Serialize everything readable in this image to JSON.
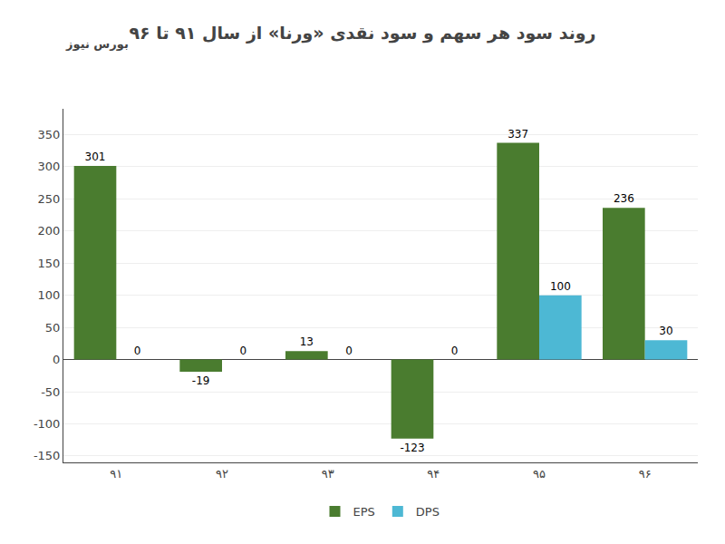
{
  "chart_data": {
    "type": "bar",
    "title": "روند سود هر سهم و سود نقدی «ورنا» از سال ۹۱ تا ۹۶",
    "annotations": [
      "بورس نیوز"
    ],
    "categories": [
      "۹۱",
      "۹۲",
      "۹۳",
      "۹۴",
      "۹۵",
      "۹۶"
    ],
    "series": [
      {
        "name": "EPS",
        "color": "#4a7c2f",
        "values": [
          301,
          -19,
          13,
          -123,
          337,
          236
        ]
      },
      {
        "name": "DPS",
        "color": "#4db8d4",
        "values": [
          0,
          0,
          0,
          0,
          100,
          30
        ]
      }
    ],
    "ylim": [
      -160,
      390
    ],
    "yticks": [
      -150,
      -100,
      -50,
      0,
      50,
      100,
      150,
      200,
      250,
      300,
      350
    ],
    "grid": true,
    "legend": "bottom",
    "data_labels": true
  }
}
